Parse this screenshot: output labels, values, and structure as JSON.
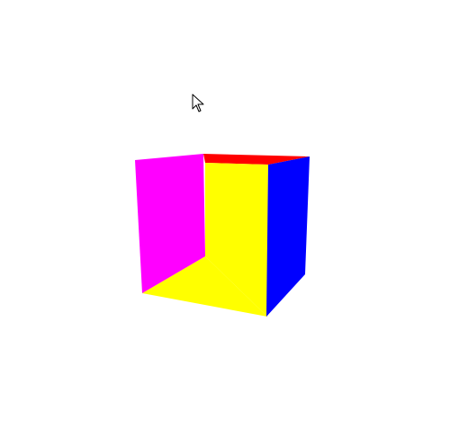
{
  "scene": {
    "background": "#ffffff",
    "object": "cube",
    "faces": {
      "top": {
        "color": "#ff0000"
      },
      "left-inner": {
        "color": "#ff00ff"
      },
      "bottom": {
        "color": "#ffff00"
      },
      "back": {
        "color": "#ffff00"
      },
      "right": {
        "color": "#0000ff"
      }
    }
  },
  "cursor": {
    "icon": "arrow-pointer-icon"
  }
}
